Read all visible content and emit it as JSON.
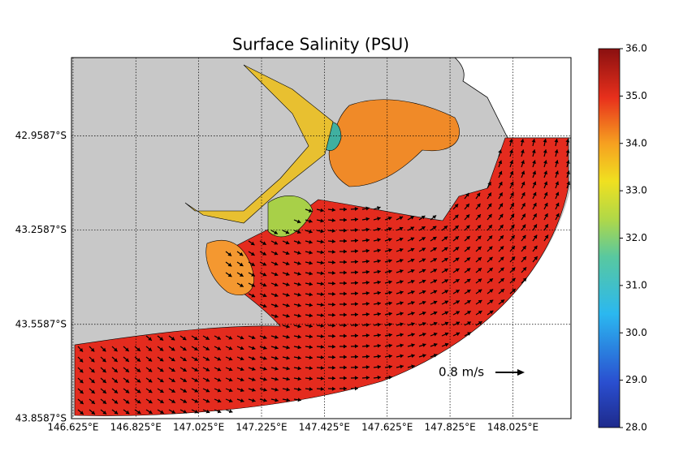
{
  "title": "Surface Salinity (PSU)",
  "map": {
    "xlim": [
      146.62,
      148.21
    ],
    "ylim": [
      42.71,
      43.8587
    ],
    "xticks": [
      {
        "value": 146.625,
        "label": "146.625°E"
      },
      {
        "value": 146.825,
        "label": "146.825°E"
      },
      {
        "value": 147.025,
        "label": "147.025°E"
      },
      {
        "value": 147.225,
        "label": "147.225°E"
      },
      {
        "value": 147.425,
        "label": "147.425°E"
      },
      {
        "value": 147.625,
        "label": "147.625°E"
      },
      {
        "value": 147.825,
        "label": "147.825°E"
      },
      {
        "value": 148.025,
        "label": "148.025°E"
      }
    ],
    "yticks": [
      {
        "value": 42.9587,
        "label": "42.9587°S"
      },
      {
        "value": 43.2587,
        "label": "43.2587°S"
      },
      {
        "value": 43.5587,
        "label": "43.5587°S"
      },
      {
        "value": 43.8587,
        "label": "43.8587°S"
      }
    ],
    "grid": true,
    "scale_label": "0.8 m/s"
  },
  "colorbar": {
    "lim": [
      28,
      36
    ],
    "ticks": [
      {
        "value": 36,
        "label": "36.0"
      },
      {
        "value": 35,
        "label": "35.0"
      },
      {
        "value": 34,
        "label": "34.0"
      },
      {
        "value": 33,
        "label": "33.0"
      },
      {
        "value": 32,
        "label": "32.0"
      },
      {
        "value": 31,
        "label": "31.0"
      },
      {
        "value": 30,
        "label": "30.0"
      },
      {
        "value": 29,
        "label": "29.0"
      },
      {
        "value": 28,
        "label": "28.0"
      }
    ]
  }
}
